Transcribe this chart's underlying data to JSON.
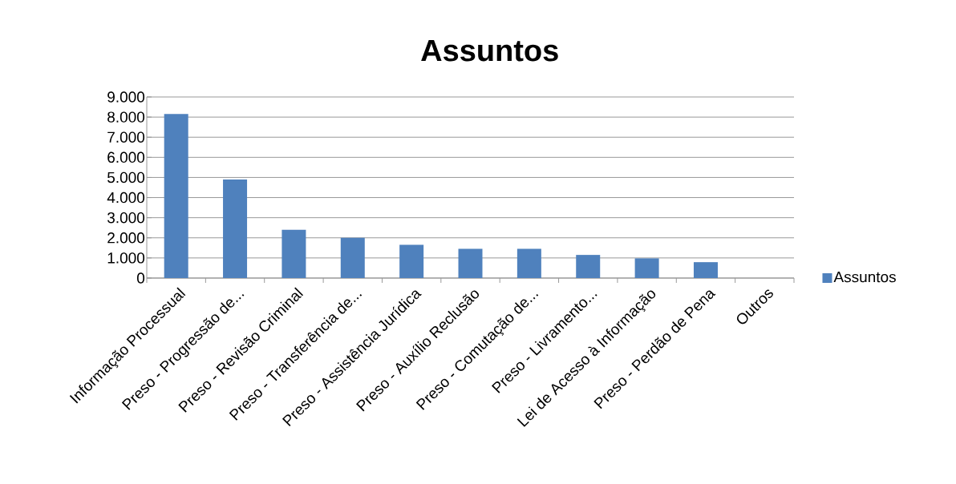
{
  "chart_data": {
    "type": "bar",
    "title": "Assuntos",
    "categories": [
      "Informação Processual",
      "Preso - Progressão de...",
      "Preso - Revisão Criminal",
      "Preso - Transferência de...",
      "Preso - Assistência Jurídica",
      "Preso - Auxílio Reclusão",
      "Preso - Comutação de...",
      "Preso - Livramento...",
      "Lei de Acesso à Informação",
      "Preso - Perdão de Pena",
      "Outros"
    ],
    "series": [
      {
        "name": "Assuntos",
        "color": "#4f81bd",
        "values": [
          8150,
          4900,
          2400,
          2000,
          1650,
          1450,
          1450,
          1150,
          980,
          790,
          0
        ]
      }
    ],
    "ylim": [
      0,
      9000
    ],
    "yticks": [
      {
        "value": 0,
        "label": "0"
      },
      {
        "value": 1000,
        "label": "1.000"
      },
      {
        "value": 2000,
        "label": "2.000"
      },
      {
        "value": 3000,
        "label": "3.000"
      },
      {
        "value": 4000,
        "label": "4.000"
      },
      {
        "value": 5000,
        "label": "5.000"
      },
      {
        "value": 6000,
        "label": "6.000"
      },
      {
        "value": 7000,
        "label": "7.000"
      },
      {
        "value": 8000,
        "label": "8.000"
      },
      {
        "value": 9000,
        "label": "9.000"
      }
    ],
    "grid": "y",
    "legend": "right"
  }
}
